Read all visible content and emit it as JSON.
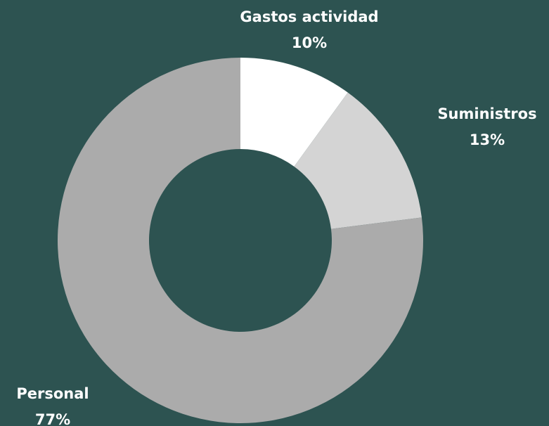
{
  "chart_data": {
    "type": "donut",
    "categories": [
      "Gastos actividad",
      "Suministros",
      "Personal"
    ],
    "values": [
      10,
      13,
      77
    ],
    "value_labels": [
      "10%",
      "13%",
      "77%"
    ],
    "colors": [
      "#ffffff",
      "#d4d4d4",
      "#ababab"
    ],
    "background": "#2d5351"
  }
}
